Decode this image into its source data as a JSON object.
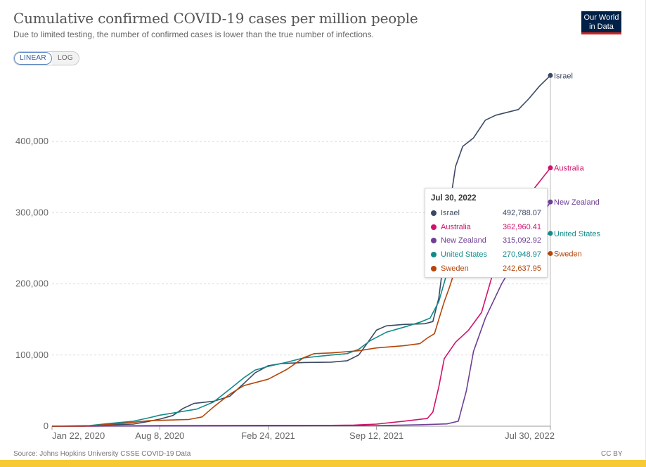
{
  "header": {
    "title": "Cumulative confirmed COVID-19 cases per million people",
    "subtitle": "Due to limited testing, the number of confirmed cases is lower than the true number of infections."
  },
  "logo": {
    "line1": "Our World",
    "line2": "in Data",
    "bg_color": "#002147",
    "accent_color": "#ce261e"
  },
  "scale_toggle": {
    "options": [
      "LINEAR",
      "LOG"
    ],
    "selected": "LINEAR"
  },
  "footer": {
    "source": "Source: Johns Hopkins University CSSE COVID-19 Data",
    "license": "CC BY"
  },
  "tooltip": {
    "date": "Jul 30, 2022",
    "rows": [
      {
        "name": "Israel",
        "value": "492,788.07",
        "color": "#3b4a64"
      },
      {
        "name": "Australia",
        "value": "362,960.41",
        "color": "#d1136b"
      },
      {
        "name": "New Zealand",
        "value": "315,092.92",
        "color": "#6e3f94"
      },
      {
        "name": "United States",
        "value": "270,948.97",
        "color": "#138a8a"
      },
      {
        "name": "Sweden",
        "value": "242,637.95",
        "color": "#b5460b"
      }
    ]
  },
  "chart_data": {
    "type": "line",
    "title": "Cumulative confirmed COVID-19 cases per million people",
    "xlabel": "",
    "ylabel": "",
    "x_ticks": [
      "Jan 22, 2020",
      "Aug 8, 2020",
      "Feb 24, 2021",
      "Sep 12, 2021",
      "Jul 30, 2022"
    ],
    "y_ticks": [
      0,
      100000,
      200000,
      300000,
      400000
    ],
    "y_tick_labels": [
      "0",
      "100,000",
      "200,000",
      "300,000",
      "400,000"
    ],
    "ylim": [
      0,
      500000
    ],
    "xlim": [
      "2020-01-22",
      "2022-07-30"
    ],
    "grid": true,
    "legend": "end-labels on right",
    "series": [
      {
        "name": "Israel",
        "color": "#3b4a64",
        "end_value": 492788.07,
        "points": [
          [
            "2020-01-22",
            0
          ],
          [
            "2020-03-20",
            100
          ],
          [
            "2020-05-01",
            1800
          ],
          [
            "2020-06-20",
            3000
          ],
          [
            "2020-07-20",
            7000
          ],
          [
            "2020-08-08",
            10000
          ],
          [
            "2020-09-01",
            15000
          ],
          [
            "2020-09-20",
            25000
          ],
          [
            "2020-10-10",
            32000
          ],
          [
            "2020-11-15",
            35000
          ],
          [
            "2020-12-15",
            42000
          ],
          [
            "2021-01-10",
            60000
          ],
          [
            "2021-01-31",
            75000
          ],
          [
            "2021-02-24",
            85000
          ],
          [
            "2021-03-20",
            88000
          ],
          [
            "2021-05-01",
            89500
          ],
          [
            "2021-06-20",
            90000
          ],
          [
            "2021-07-20",
            92000
          ],
          [
            "2021-08-10",
            100000
          ],
          [
            "2021-08-31",
            122000
          ],
          [
            "2021-09-12",
            135000
          ],
          [
            "2021-09-30",
            141000
          ],
          [
            "2021-11-01",
            143000
          ],
          [
            "2021-12-10",
            144000
          ],
          [
            "2021-12-25",
            147000
          ],
          [
            "2022-01-05",
            180000
          ],
          [
            "2022-01-15",
            240000
          ],
          [
            "2022-01-25",
            310000
          ],
          [
            "2022-02-05",
            365000
          ],
          [
            "2022-02-18",
            393000
          ],
          [
            "2022-03-10",
            405000
          ],
          [
            "2022-04-01",
            430000
          ],
          [
            "2022-04-20",
            437000
          ],
          [
            "2022-06-01",
            445000
          ],
          [
            "2022-06-20",
            460000
          ],
          [
            "2022-07-10",
            478000
          ],
          [
            "2022-07-30",
            492788.07
          ]
        ]
      },
      {
        "name": "Australia",
        "color": "#d1136b",
        "end_value": 362960.41,
        "points": [
          [
            "2020-01-22",
            0
          ],
          [
            "2020-03-20",
            30
          ],
          [
            "2020-05-01",
            260
          ],
          [
            "2020-08-08",
            900
          ],
          [
            "2021-02-24",
            1140
          ],
          [
            "2021-06-20",
            1200
          ],
          [
            "2021-08-01",
            1600
          ],
          [
            "2021-09-12",
            3000
          ],
          [
            "2021-11-01",
            7000
          ],
          [
            "2021-12-15",
            11000
          ],
          [
            "2021-12-25",
            20000
          ],
          [
            "2022-01-05",
            55000
          ],
          [
            "2022-01-15",
            95000
          ],
          [
            "2022-02-05",
            118000
          ],
          [
            "2022-03-01",
            135000
          ],
          [
            "2022-03-25",
            160000
          ],
          [
            "2022-04-15",
            215000
          ],
          [
            "2022-05-10",
            265000
          ],
          [
            "2022-06-10",
            305000
          ],
          [
            "2022-07-01",
            335000
          ],
          [
            "2022-07-30",
            362960.41
          ]
        ]
      },
      {
        "name": "New Zealand",
        "color": "#6e3f94",
        "end_value": 315092.92,
        "points": [
          [
            "2020-01-22",
            0
          ],
          [
            "2020-04-10",
            200
          ],
          [
            "2021-02-24",
            480
          ],
          [
            "2021-09-12",
            800
          ],
          [
            "2021-12-01",
            2100
          ],
          [
            "2022-01-20",
            3300
          ],
          [
            "2022-02-10",
            7000
          ],
          [
            "2022-02-25",
            50000
          ],
          [
            "2022-03-10",
            105000
          ],
          [
            "2022-04-01",
            152000
          ],
          [
            "2022-05-01",
            200000
          ],
          [
            "2022-06-01",
            240000
          ],
          [
            "2022-07-01",
            280000
          ],
          [
            "2022-07-30",
            315092.92
          ]
        ]
      },
      {
        "name": "United States",
        "color": "#138a8a",
        "end_value": 270948.97,
        "points": [
          [
            "2020-01-22",
            0
          ],
          [
            "2020-04-01",
            1000
          ],
          [
            "2020-05-01",
            3500
          ],
          [
            "2020-06-20",
            7000
          ],
          [
            "2020-07-20",
            12000
          ],
          [
            "2020-08-08",
            15500
          ],
          [
            "2020-09-01",
            18500
          ],
          [
            "2020-10-15",
            24000
          ],
          [
            "2020-11-15",
            34000
          ],
          [
            "2020-12-15",
            52000
          ],
          [
            "2021-01-10",
            68000
          ],
          [
            "2021-01-31",
            79000
          ],
          [
            "2021-02-24",
            84000
          ],
          [
            "2021-03-31",
            90000
          ],
          [
            "2021-05-01",
            96000
          ],
          [
            "2021-06-20",
            100000
          ],
          [
            "2021-07-20",
            102000
          ],
          [
            "2021-08-10",
            108000
          ],
          [
            "2021-08-31",
            120000
          ],
          [
            "2021-09-30",
            132000
          ],
          [
            "2021-11-01",
            139000
          ],
          [
            "2021-12-01",
            146000
          ],
          [
            "2021-12-20",
            152000
          ],
          [
            "2022-01-05",
            175000
          ],
          [
            "2022-01-20",
            215000
          ],
          [
            "2022-02-10",
            236000
          ],
          [
            "2022-03-10",
            240000
          ],
          [
            "2022-04-20",
            245000
          ],
          [
            "2022-06-01",
            256000
          ],
          [
            "2022-07-30",
            270948.97
          ]
        ]
      },
      {
        "name": "Sweden",
        "color": "#b5460b",
        "end_value": 242637.95,
        "points": [
          [
            "2020-01-22",
            0
          ],
          [
            "2020-04-01",
            400
          ],
          [
            "2020-05-01",
            2300
          ],
          [
            "2020-06-20",
            5500
          ],
          [
            "2020-07-20",
            7800
          ],
          [
            "2020-08-08",
            8200
          ],
          [
            "2020-10-01",
            9500
          ],
          [
            "2020-10-25",
            13000
          ],
          [
            "2020-11-15",
            27000
          ],
          [
            "2020-12-15",
            45000
          ],
          [
            "2021-01-10",
            57000
          ],
          [
            "2021-02-24",
            66000
          ],
          [
            "2021-03-31",
            80000
          ],
          [
            "2021-04-30",
            96000
          ],
          [
            "2021-05-20",
            102000
          ],
          [
            "2021-06-20",
            103000
          ],
          [
            "2021-08-10",
            106000
          ],
          [
            "2021-09-12",
            110000
          ],
          [
            "2021-11-01",
            113000
          ],
          [
            "2021-12-01",
            116000
          ],
          [
            "2021-12-15",
            124000
          ],
          [
            "2021-12-28",
            130000
          ],
          [
            "2022-01-05",
            150000
          ],
          [
            "2022-01-15",
            175000
          ],
          [
            "2022-01-25",
            196000
          ],
          [
            "2022-02-05",
            222000
          ],
          [
            "2022-02-20",
            236000
          ],
          [
            "2022-03-10",
            239000
          ],
          [
            "2022-05-01",
            240500
          ],
          [
            "2022-07-30",
            242637.95
          ]
        ]
      }
    ]
  }
}
